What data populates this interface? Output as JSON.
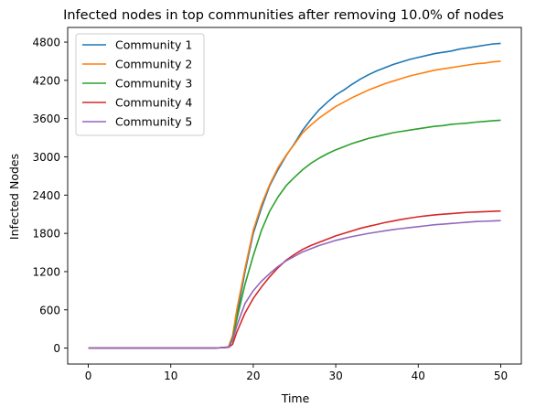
{
  "chart_data": {
    "type": "line",
    "title": "Infected nodes in top communities after removing 10.0% of nodes",
    "xlabel": "Time",
    "ylabel": "Infected Nodes",
    "xlim": [
      -2.5,
      52.5
    ],
    "ylim": [
      -250,
      5030
    ],
    "x_ticks": [
      0,
      10,
      20,
      30,
      40,
      50
    ],
    "y_ticks": [
      0,
      600,
      1200,
      1800,
      2400,
      3000,
      3600,
      4200,
      4800
    ],
    "grid": false,
    "legend_position": "upper left",
    "series": [
      {
        "name": "Community 1",
        "color": "#1f77b4",
        "x": [
          0,
          5,
          10,
          15,
          16,
          17,
          17.5,
          18,
          19,
          20,
          21,
          22,
          23,
          24,
          25,
          26,
          27,
          28,
          29,
          30,
          31,
          32,
          33,
          34,
          35,
          36,
          37,
          38,
          39,
          40,
          41,
          42,
          43,
          44,
          45,
          46,
          47,
          48,
          49,
          50
        ],
        "y": [
          0,
          0,
          0,
          0,
          5,
          15,
          150,
          500,
          1200,
          1800,
          2200,
          2550,
          2800,
          3020,
          3210,
          3420,
          3590,
          3740,
          3860,
          3970,
          4050,
          4140,
          4220,
          4290,
          4350,
          4400,
          4450,
          4490,
          4530,
          4560,
          4590,
          4620,
          4640,
          4660,
          4690,
          4710,
          4730,
          4750,
          4770,
          4780
        ]
      },
      {
        "name": "Community 2",
        "color": "#ff7f0e",
        "x": [
          0,
          5,
          10,
          15,
          16,
          17,
          17.5,
          18,
          19,
          20,
          21,
          22,
          23,
          24,
          25,
          26,
          27,
          28,
          29,
          30,
          31,
          32,
          33,
          34,
          35,
          36,
          37,
          38,
          39,
          40,
          41,
          42,
          43,
          44,
          45,
          46,
          47,
          48,
          49,
          50
        ],
        "y": [
          0,
          0,
          0,
          0,
          5,
          20,
          200,
          600,
          1250,
          1850,
          2250,
          2570,
          2830,
          3030,
          3200,
          3380,
          3500,
          3610,
          3700,
          3790,
          3860,
          3930,
          3990,
          4050,
          4100,
          4150,
          4190,
          4230,
          4270,
          4300,
          4330,
          4360,
          4380,
          4400,
          4420,
          4440,
          4460,
          4470,
          4490,
          4500
        ]
      },
      {
        "name": "Community 3",
        "color": "#2ca02c",
        "x": [
          0,
          5,
          10,
          15,
          16,
          17,
          17.5,
          18,
          19,
          20,
          21,
          22,
          23,
          24,
          25,
          26,
          27,
          28,
          29,
          30,
          31,
          32,
          33,
          34,
          35,
          36,
          37,
          38,
          39,
          40,
          41,
          42,
          43,
          44,
          45,
          46,
          47,
          48,
          49,
          50
        ],
        "y": [
          0,
          0,
          0,
          0,
          5,
          15,
          150,
          450,
          1000,
          1450,
          1850,
          2150,
          2370,
          2550,
          2680,
          2800,
          2900,
          2980,
          3050,
          3110,
          3160,
          3210,
          3250,
          3290,
          3320,
          3350,
          3380,
          3400,
          3420,
          3440,
          3460,
          3480,
          3490,
          3510,
          3520,
          3530,
          3545,
          3555,
          3565,
          3575
        ]
      },
      {
        "name": "Community 4",
        "color": "#d62728",
        "x": [
          0,
          5,
          10,
          15,
          16,
          17,
          17.5,
          18,
          19,
          20,
          21,
          22,
          23,
          24,
          25,
          26,
          27,
          28,
          29,
          30,
          31,
          32,
          33,
          34,
          35,
          36,
          37,
          38,
          39,
          40,
          41,
          42,
          43,
          44,
          45,
          46,
          47,
          48,
          49,
          50
        ],
        "y": [
          0,
          0,
          0,
          0,
          5,
          10,
          60,
          250,
          550,
          780,
          960,
          1120,
          1260,
          1380,
          1470,
          1550,
          1610,
          1660,
          1710,
          1760,
          1800,
          1840,
          1880,
          1910,
          1940,
          1970,
          1995,
          2020,
          2040,
          2060,
          2075,
          2090,
          2100,
          2110,
          2120,
          2130,
          2135,
          2140,
          2145,
          2150
        ]
      },
      {
        "name": "Community 5",
        "color": "#9467bd",
        "x": [
          0,
          5,
          10,
          15,
          16,
          17,
          17.5,
          18,
          19,
          20,
          21,
          22,
          23,
          24,
          25,
          26,
          27,
          28,
          29,
          30,
          31,
          32,
          33,
          34,
          35,
          36,
          37,
          38,
          39,
          40,
          41,
          42,
          43,
          44,
          45,
          46,
          47,
          48,
          49,
          50
        ],
        "y": [
          0,
          0,
          0,
          0,
          5,
          15,
          120,
          350,
          700,
          900,
          1050,
          1170,
          1280,
          1370,
          1440,
          1510,
          1560,
          1610,
          1650,
          1690,
          1720,
          1750,
          1775,
          1800,
          1820,
          1840,
          1860,
          1875,
          1890,
          1905,
          1920,
          1935,
          1945,
          1955,
          1965,
          1975,
          1985,
          1990,
          1995,
          2000
        ]
      }
    ]
  }
}
